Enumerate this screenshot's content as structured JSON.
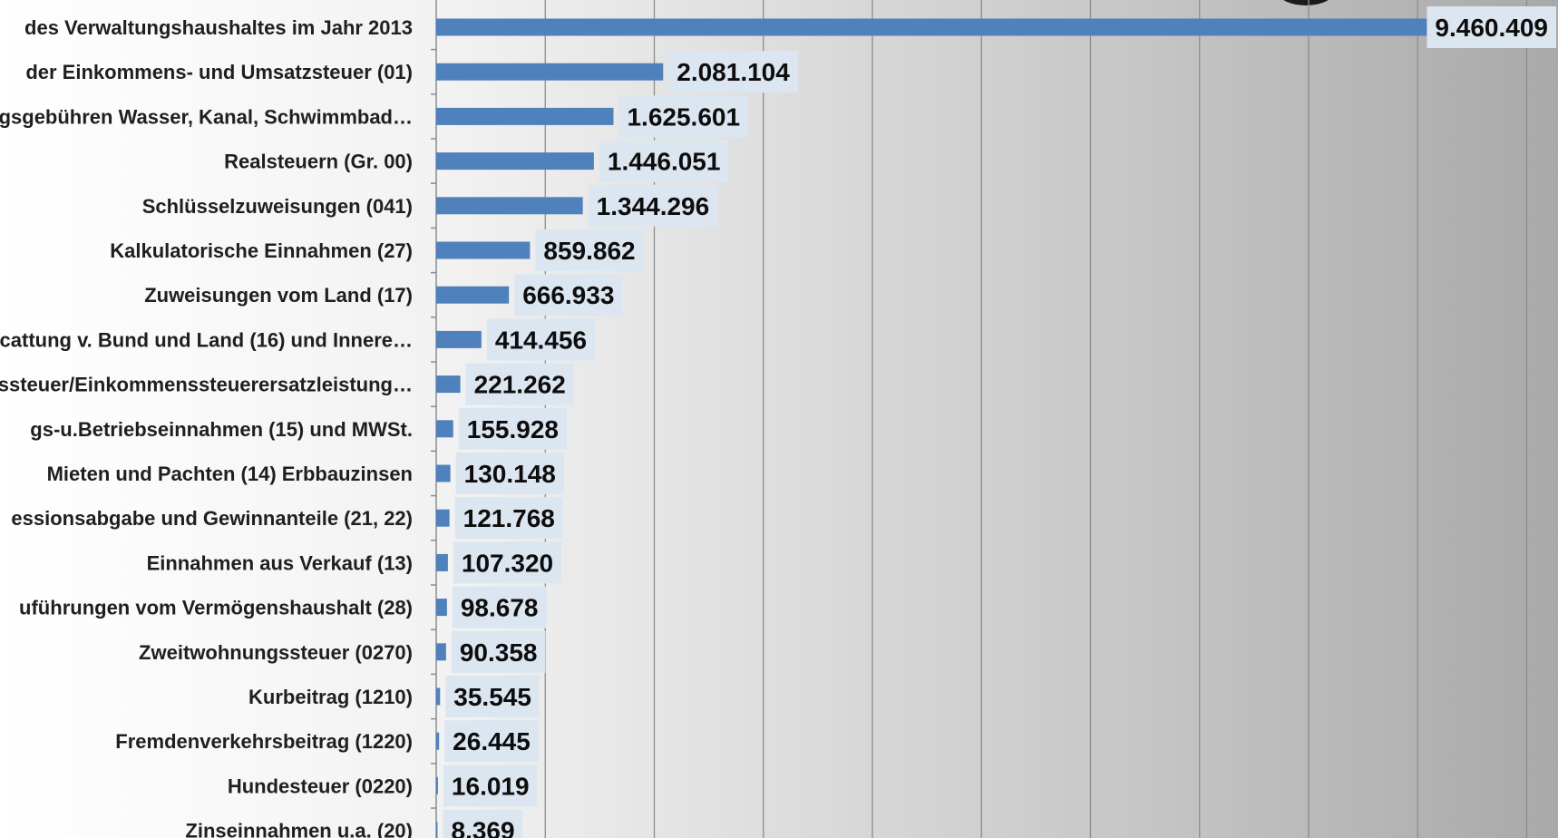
{
  "chart_data": {
    "type": "bar",
    "orientation": "horizontal",
    "categories": [
      "des Verwaltungshaushaltes im Jahr 2013",
      "der Einkommens- und Umsatzsteuer (01)",
      "gsgebühren Wasser, Kanal, Schwimmbad…",
      "Realsteuern (Gr. 00)",
      "Schlüsselzuweisungen (041)",
      "Kalkulatorische Einnahmen (27)",
      "Zuweisungen vom Land (17)",
      "cattung v.  Bund und Land (16) und Innere…",
      "ssteuer/Einkommenssteuerersatzleistung…",
      "gs-u.Betriebseinnahmen (15) und MWSt.",
      "Mieten und Pachten (14) Erbbauzinsen",
      "essionsabgabe und Gewinnanteile (21, 22)",
      "Einnahmen aus Verkauf (13)",
      "uführungen vom Vermögenshaushalt (28)",
      "Zweitwohnungssteuer (0270)",
      "Kurbeitrag (1210)",
      "Fremdenverkehrsbeitrag (1220)",
      "Hundesteuer (0220)",
      "Zinseinnahmen u.a. (20)"
    ],
    "values": [
      9460409,
      2081104,
      1625601,
      1446051,
      1344296,
      859862,
      666933,
      414456,
      221262,
      155928,
      130148,
      121768,
      107320,
      98678,
      90358,
      35545,
      26445,
      16019,
      8369
    ],
    "value_labels": [
      "9.460.409",
      "2.081.104",
      "1.625.601",
      "1.446.051",
      "1.344.296",
      "859.862",
      "666.933",
      "414.456",
      "221.262",
      "155.928",
      "130.148",
      "121.768",
      "107.320",
      "98.678",
      "90.358",
      "35.545",
      "26.445",
      "16.019",
      "8.369"
    ],
    "xlim": [
      0,
      10000000
    ],
    "x_gridline_step": 1000000,
    "grid": true,
    "colors": {
      "bar": "#4f81bd",
      "label_background": "#dce6f1",
      "gridline": "#8c8c8c",
      "category_text": "#1f1f1f",
      "value_text": "#0d0d0d"
    }
  }
}
